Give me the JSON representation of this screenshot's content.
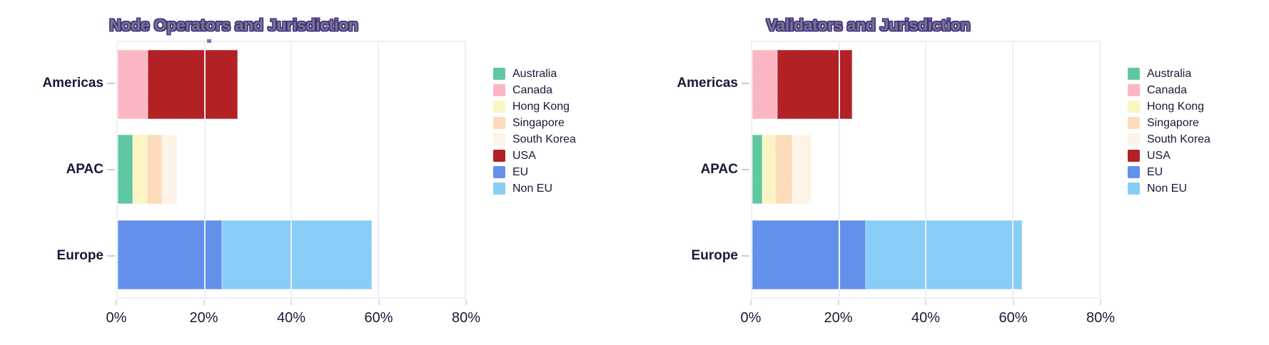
{
  "page": {
    "background": "#ffffff",
    "text_color": "#171a38"
  },
  "title_style": {
    "fill": "#6f7a88",
    "outline": "#4b2d87"
  },
  "grid_color": "#edeff5",
  "chart_data": [
    {
      "type": "bar",
      "orientation": "horizontal",
      "stacked": true,
      "title": "Node Operators and Jurisdiction",
      "categories": [
        "Americas",
        "APAC",
        "Europe"
      ],
      "series": [
        {
          "name": "Australia",
          "color": "#5fc8a1",
          "values": [
            0,
            3.4,
            0
          ]
        },
        {
          "name": "Canada",
          "color": "#fbb6c3",
          "values": [
            6.9,
            0,
            0
          ]
        },
        {
          "name": "Hong Kong",
          "color": "#fbf5c4",
          "values": [
            0,
            3.4,
            0
          ]
        },
        {
          "name": "Singapore",
          "color": "#fcdcba",
          "values": [
            0,
            3.4,
            0
          ]
        },
        {
          "name": "South Korea",
          "color": "#fdf3e6",
          "values": [
            0,
            3.4,
            0
          ]
        },
        {
          "name": "USA",
          "color": "#b22124",
          "values": [
            20.7,
            0,
            0
          ]
        },
        {
          "name": "EU",
          "color": "#6390ea",
          "values": [
            0,
            0,
            24.1
          ]
        },
        {
          "name": "Non EU",
          "color": "#87cdf7",
          "values": [
            0,
            0,
            34.5
          ]
        }
      ],
      "x_ticks": [
        "0%",
        "20%",
        "40%",
        "60%",
        "80%"
      ],
      "xlim": [
        0,
        80
      ],
      "grid": true,
      "legend": [
        "Australia",
        "Canada",
        "Hong Kong",
        "Singapore",
        "South Korea",
        "USA",
        "EU",
        "Non EU"
      ],
      "legend_position": "right"
    },
    {
      "type": "bar",
      "orientation": "horizontal",
      "stacked": true,
      "title": "Validators and Jurisdiction",
      "categories": [
        "Americas",
        "APAC",
        "Europe"
      ],
      "series": [
        {
          "name": "Australia",
          "color": "#5fc8a1",
          "values": [
            0,
            2.3,
            0
          ]
        },
        {
          "name": "Canada",
          "color": "#fbb6c3",
          "values": [
            5.7,
            0,
            0
          ]
        },
        {
          "name": "Hong Kong",
          "color": "#fbf5c4",
          "values": [
            0,
            2.9,
            0
          ]
        },
        {
          "name": "Singapore",
          "color": "#fcdcba",
          "values": [
            0,
            4.0,
            0
          ]
        },
        {
          "name": "South Korea",
          "color": "#fdf3e6",
          "values": [
            0,
            4.4,
            0
          ]
        },
        {
          "name": "USA",
          "color": "#b22124",
          "values": [
            17.4,
            0,
            0
          ]
        },
        {
          "name": "EU",
          "color": "#6390ea",
          "values": [
            0,
            0,
            26.1
          ]
        },
        {
          "name": "Non EU",
          "color": "#87cdf7",
          "values": [
            0,
            0,
            36.1
          ]
        }
      ],
      "x_ticks": [
        "0%",
        "20%",
        "40%",
        "60%",
        "80%"
      ],
      "xlim": [
        0,
        80
      ],
      "grid": true,
      "legend": [
        "Australia",
        "Canada",
        "Hong Kong",
        "Singapore",
        "South Korea",
        "USA",
        "EU",
        "Non EU"
      ],
      "legend_position": "right"
    }
  ]
}
